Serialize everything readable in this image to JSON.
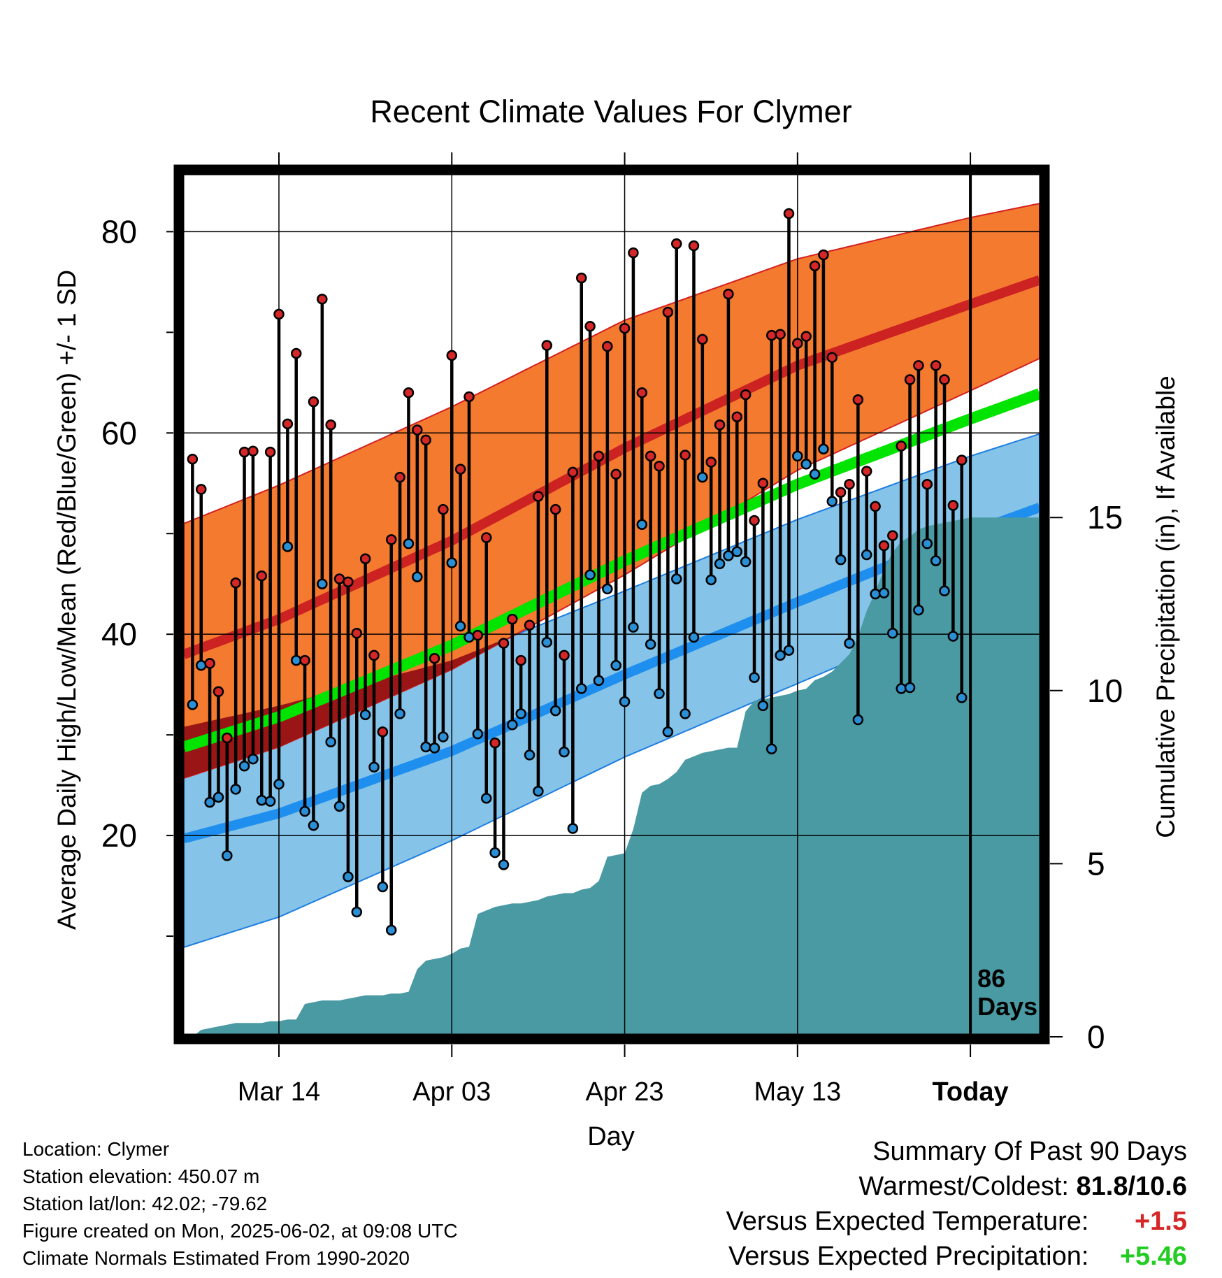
{
  "chart_data": {
    "type": "line",
    "title": "Recent Climate Values For Clymer",
    "xlabel": "Day",
    "ylabel": "Average Daily High/Low/Mean (Red/Blue/Green) +/- 1 SD",
    "y2label": "Cumulative Precipitation (in), If Available",
    "ylim": [
      0,
      86
    ],
    "y2lim": [
      0,
      25
    ],
    "xlim": [
      "2025-03-03",
      "2025-06-10"
    ],
    "x_ticks": [
      {
        "label": "Mar 14",
        "date": "2025-03-14"
      },
      {
        "label": "Apr 03",
        "date": "2025-04-03"
      },
      {
        "label": "Apr 23",
        "date": "2025-04-23"
      },
      {
        "label": "May 13",
        "date": "2025-05-13"
      },
      {
        "label": "Today",
        "date": "2025-06-02"
      }
    ],
    "y_ticks": [
      20,
      40,
      60,
      80
    ],
    "y2_ticks": [
      0,
      5,
      10,
      15
    ],
    "grid": true,
    "today_date": "2025-06-02",
    "today_label": "86 Days",
    "normals": {
      "x": [
        "2025-03-03",
        "2025-03-14",
        "2025-04-03",
        "2025-04-23",
        "2025-05-13",
        "2025-06-02",
        "2025-06-10"
      ],
      "high_mean": [
        38.0,
        41.5,
        49.3,
        58.5,
        66.7,
        72.8,
        75.2
      ],
      "high_upper": [
        51.0,
        54.8,
        62.6,
        71.2,
        77.3,
        81.4,
        82.8
      ],
      "high_lower": [
        25.7,
        28.8,
        36.5,
        45.9,
        56.3,
        64.2,
        67.4
      ],
      "low_mean": [
        19.7,
        22.2,
        28.4,
        36.0,
        43.2,
        50.1,
        52.6
      ],
      "low_upper": [
        30.8,
        32.9,
        37.4,
        44.3,
        51.4,
        57.7,
        59.9
      ],
      "low_lower": [
        8.9,
        11.9,
        19.5,
        27.8,
        35.1,
        42.4,
        45.5
      ],
      "avg_mean": [
        28.8,
        31.8,
        38.9,
        47.3,
        54.9,
        61.4,
        63.9
      ]
    },
    "series": [
      {
        "name": "High",
        "color": "#d62728",
        "values": [
          57.4,
          54.4,
          37.1,
          34.3,
          29.7,
          45.1,
          58.1,
          58.2,
          45.8,
          58.1,
          71.8,
          60.9,
          67.9,
          37.4,
          63.1,
          73.3,
          60.8,
          45.5,
          45.2,
          40.1,
          47.5,
          37.9,
          30.3,
          49.4,
          55.6,
          64.0,
          60.3,
          59.3,
          37.6,
          52.4,
          67.7,
          56.4,
          63.6,
          39.9,
          49.6,
          29.2,
          39.1,
          41.5,
          37.4,
          40.9,
          53.7,
          68.7,
          52.4,
          37.9,
          56.1,
          75.4,
          70.6,
          57.7,
          68.6,
          55.9,
          70.4,
          77.9,
          64.0,
          57.7,
          56.7,
          72.0,
          78.8,
          57.8,
          78.6,
          69.3,
          57.1,
          60.8,
          73.8,
          61.6,
          63.8,
          51.3,
          55.0,
          69.7,
          69.8,
          81.8,
          68.9,
          69.6,
          76.6,
          77.7,
          67.5,
          54.1,
          54.9,
          63.3,
          56.2,
          52.7,
          48.8,
          49.8,
          58.7,
          65.3,
          66.7,
          54.9,
          66.7,
          65.3,
          52.8,
          57.3
        ]
      },
      {
        "name": "Low",
        "color": "#2b8fd6",
        "values": [
          33.0,
          36.9,
          23.3,
          23.8,
          18.0,
          24.6,
          26.9,
          27.6,
          23.5,
          23.4,
          25.1,
          48.7,
          37.4,
          22.4,
          21.0,
          45.0,
          29.3,
          22.9,
          15.9,
          12.4,
          32.0,
          26.8,
          14.9,
          10.6,
          32.1,
          49.0,
          45.7,
          28.8,
          28.7,
          29.8,
          47.1,
          40.8,
          39.7,
          30.1,
          23.7,
          18.3,
          17.1,
          31.0,
          32.1,
          28.0,
          24.4,
          39.2,
          32.4,
          28.3,
          20.7,
          34.6,
          45.9,
          35.4,
          44.5,
          36.9,
          33.3,
          40.7,
          50.9,
          39.0,
          34.1,
          30.3,
          45.5,
          32.1,
          39.7,
          55.6,
          45.4,
          47.0,
          47.8,
          48.2,
          47.2,
          35.7,
          32.9,
          28.6,
          37.9,
          38.4,
          57.7,
          56.9,
          55.9,
          58.4,
          53.2,
          47.4,
          39.1,
          31.5,
          47.9,
          44.0,
          44.1,
          40.1,
          34.6,
          34.7,
          42.4,
          49.0,
          47.3,
          44.3,
          39.8,
          33.7
        ]
      },
      {
        "name": "Cumulative Precipitation",
        "color": "#4a9aa3",
        "values": [
          0.0,
          0.2,
          0.25,
          0.3,
          0.35,
          0.4,
          0.4,
          0.4,
          0.4,
          0.45,
          0.45,
          0.5,
          0.5,
          0.95,
          1.0,
          1.05,
          1.05,
          1.05,
          1.1,
          1.15,
          1.2,
          1.2,
          1.2,
          1.25,
          1.25,
          1.3,
          1.95,
          2.2,
          2.25,
          2.3,
          2.4,
          2.55,
          2.6,
          3.55,
          3.65,
          3.75,
          3.8,
          3.85,
          3.85,
          3.9,
          3.95,
          4.05,
          4.1,
          4.15,
          4.15,
          4.25,
          4.3,
          4.5,
          5.2,
          5.25,
          5.3,
          6.0,
          7.05,
          7.25,
          7.3,
          7.45,
          7.65,
          8.0,
          8.1,
          8.2,
          8.25,
          8.3,
          8.35,
          8.35,
          9.4,
          9.7,
          9.75,
          9.8,
          9.85,
          9.9,
          10.0,
          10.05,
          10.3,
          10.4,
          10.55,
          10.8,
          11.05,
          11.55,
          12.3,
          12.85,
          13.5,
          14.0,
          14.3,
          14.45,
          14.65,
          14.75,
          14.8,
          14.85,
          14.9,
          14.95,
          15.0
        ]
      }
    ]
  },
  "footer": {
    "location": "Location: Clymer",
    "elevation": "Station elevation: 450.07 m",
    "latlon": "Station lat/lon: 42.02; -79.62",
    "created": "Figure created on Mon, 2025-06-02, at 09:08 UTC",
    "normals_note": "Climate Normals Estimated From 1990-2020"
  },
  "summary": {
    "title": "Summary Of Past 90 Days",
    "warmest_coldest_label": "Warmest/Coldest:",
    "warmest_coldest_value": "81.8/10.6",
    "temp_label": "Versus Expected Temperature:",
    "temp_value": "+1.5",
    "temp_color": "#d62728",
    "precip_label": "Versus Expected Precipitation:",
    "precip_value": "+5.46",
    "precip_color": "#22cc22"
  },
  "colors": {
    "high_band": "#f47a30",
    "high_mean": "#cc2222",
    "low_band": "#85c3e8",
    "low_mean": "#1f8fef",
    "avg_mean": "#00e400",
    "overlap": "#9a1515",
    "precip": "#4a9aa3",
    "frame": "#000000"
  }
}
